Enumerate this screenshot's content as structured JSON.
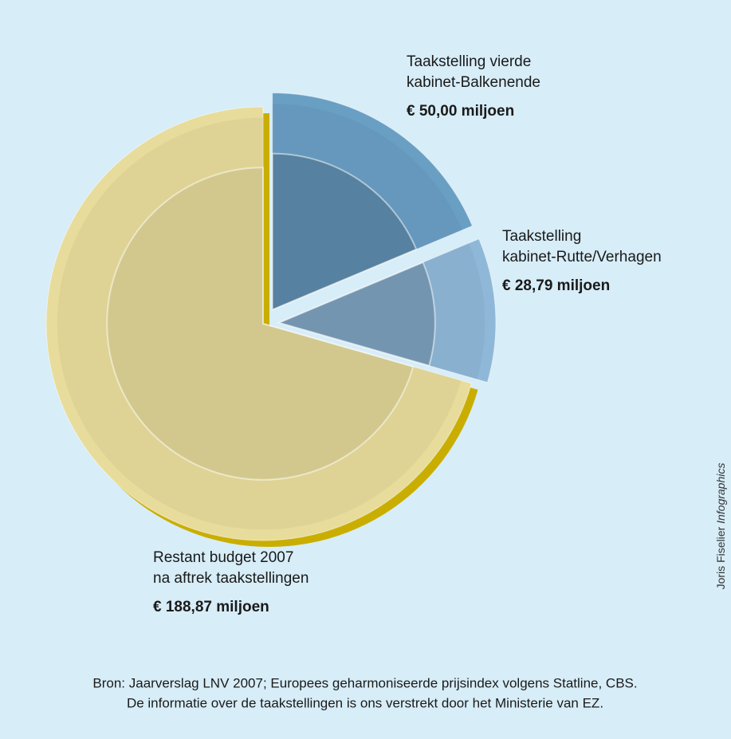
{
  "chart_data": {
    "type": "pie",
    "categories": [
      [
        "Taakstelling vierde",
        "kabinet-Balkenende"
      ],
      [
        "Taakstelling",
        "kabinet-Rutte/Verhagen"
      ],
      [
        "Restant budget 2007",
        "na aftrek taakstellingen"
      ]
    ],
    "values": [
      50.0,
      28.79,
      188.87
    ],
    "value_labels": [
      "€ 50,00 miljoen",
      "€ 28,79 miljoen",
      "€ 188,87 miljoen"
    ],
    "colors": [
      "#6a9fc4",
      "#8fb8d8",
      "#e8dc9c"
    ],
    "credit": [
      "Joris Fiselier",
      "Infographics"
    ],
    "source": [
      "Bron: Jaarverslag LNV 2007; Europees geharmoniseerde prijsindex volgens Statline, CBS.",
      "De informatie over de taakstellingen is ons verstrekt door het Ministerie van EZ."
    ]
  }
}
